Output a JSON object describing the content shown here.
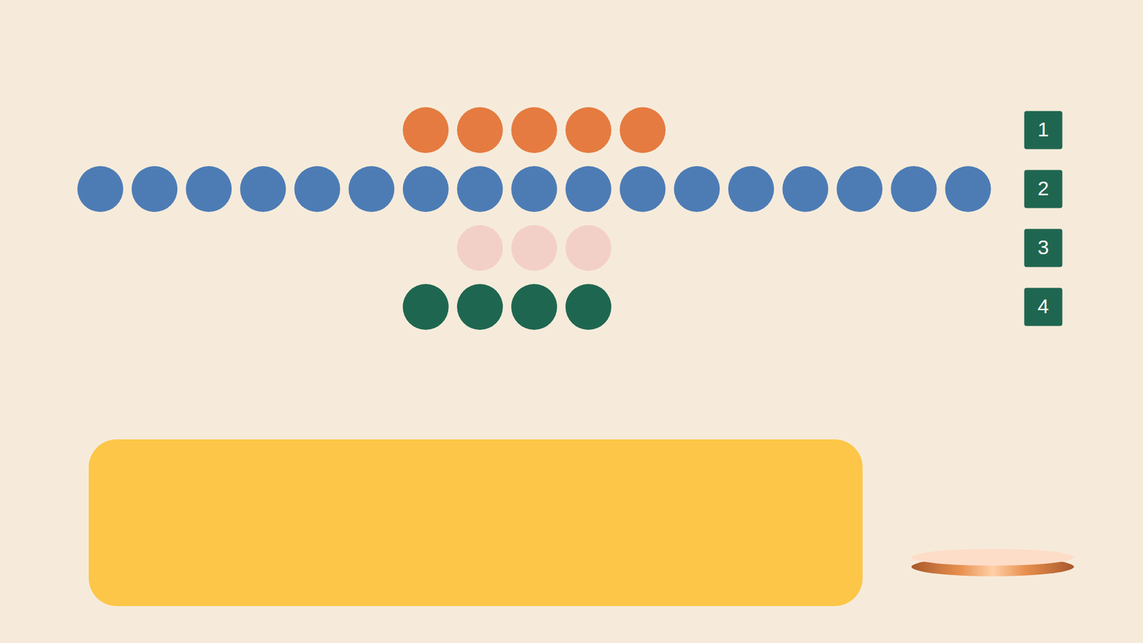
{
  "chart_data": {
    "type": "pictograph",
    "categories": [
      "1",
      "2",
      "3",
      "4"
    ],
    "values": [
      5,
      17,
      3,
      4
    ],
    "colors": [
      "#E57B40",
      "#4D7CB5",
      "#F3D0C7",
      "#1F6650"
    ]
  }
}
